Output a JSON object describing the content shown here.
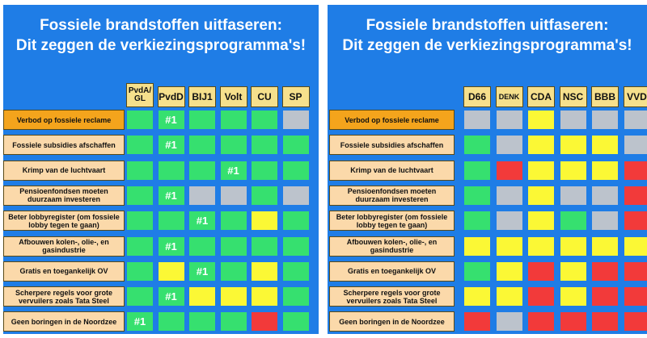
{
  "left": {
    "title_line1": "Fossiele brandstoffen uitfaseren:",
    "title_line2": "Dit zeggen de verkiezingsprogramma's!",
    "parties": [
      "PvdA/\nGL",
      "PvdD",
      "BIJ1",
      "Volt",
      "CU",
      "SP"
    ],
    "rows": [
      {
        "label": "Verbod op fossiele reclame",
        "highlight": true,
        "cells": [
          {
            "c": "green"
          },
          {
            "c": "green",
            "t": "#1"
          },
          {
            "c": "green"
          },
          {
            "c": "green"
          },
          {
            "c": "green"
          },
          {
            "c": "grey"
          }
        ]
      },
      {
        "label": "Fossiele subsidies afschaffen",
        "cells": [
          {
            "c": "green"
          },
          {
            "c": "green",
            "t": "#1"
          },
          {
            "c": "green"
          },
          {
            "c": "green"
          },
          {
            "c": "green"
          },
          {
            "c": "green"
          }
        ]
      },
      {
        "label": "Krimp van de luchtvaart",
        "cells": [
          {
            "c": "green"
          },
          {
            "c": "green"
          },
          {
            "c": "green"
          },
          {
            "c": "green",
            "t": "#1"
          },
          {
            "c": "green"
          },
          {
            "c": "green"
          }
        ]
      },
      {
        "label": "Pensioenfondsen moeten duurzaam investeren",
        "cells": [
          {
            "c": "green"
          },
          {
            "c": "green",
            "t": "#1"
          },
          {
            "c": "grey"
          },
          {
            "c": "grey"
          },
          {
            "c": "green"
          },
          {
            "c": "grey"
          }
        ]
      },
      {
        "label": "Beter lobbyregister (om fossiele lobby tegen te gaan)",
        "cells": [
          {
            "c": "green"
          },
          {
            "c": "green"
          },
          {
            "c": "green",
            "t": "#1"
          },
          {
            "c": "green"
          },
          {
            "c": "yellow"
          },
          {
            "c": "green"
          }
        ]
      },
      {
        "label": "Afbouwen kolen-, olie-, en gasindustrie",
        "cells": [
          {
            "c": "green"
          },
          {
            "c": "green",
            "t": "#1"
          },
          {
            "c": "green"
          },
          {
            "c": "green"
          },
          {
            "c": "green"
          },
          {
            "c": "green"
          }
        ]
      },
      {
        "label": "Gratis en toegankelijk OV",
        "cells": [
          {
            "c": "green"
          },
          {
            "c": "yellow"
          },
          {
            "c": "green",
            "t": "#1"
          },
          {
            "c": "green"
          },
          {
            "c": "yellow"
          },
          {
            "c": "green"
          }
        ]
      },
      {
        "label": "Scherpere regels voor grote vervuilers zoals Tata Steel",
        "cells": [
          {
            "c": "green"
          },
          {
            "c": "green",
            "t": "#1"
          },
          {
            "c": "yellow"
          },
          {
            "c": "yellow"
          },
          {
            "c": "yellow"
          },
          {
            "c": "green"
          }
        ]
      },
      {
        "label": "Geen boringen in de Noordzee",
        "cells": [
          {
            "c": "green",
            "t": "#1"
          },
          {
            "c": "green"
          },
          {
            "c": "green"
          },
          {
            "c": "green"
          },
          {
            "c": "red"
          },
          {
            "c": "green"
          }
        ]
      }
    ]
  },
  "right": {
    "title_line1": "Fossiele brandstoffen uitfaseren:",
    "title_line2": "Dit zeggen de verkiezingsprogramma's!",
    "parties": [
      "D66",
      "DENK",
      "CDA",
      "NSC",
      "BBB",
      "VVD"
    ],
    "rows": [
      {
        "label": "Verbod op fossiele reclame",
        "highlight": true,
        "cells": [
          {
            "c": "grey"
          },
          {
            "c": "grey"
          },
          {
            "c": "yellow"
          },
          {
            "c": "grey"
          },
          {
            "c": "grey"
          },
          {
            "c": "grey"
          }
        ]
      },
      {
        "label": "Fossiele subsidies afschaffen",
        "cells": [
          {
            "c": "green"
          },
          {
            "c": "grey"
          },
          {
            "c": "yellow"
          },
          {
            "c": "yellow"
          },
          {
            "c": "yellow"
          },
          {
            "c": "grey"
          }
        ]
      },
      {
        "label": "Krimp van de luchtvaart",
        "cells": [
          {
            "c": "green"
          },
          {
            "c": "red"
          },
          {
            "c": "yellow"
          },
          {
            "c": "yellow"
          },
          {
            "c": "yellow"
          },
          {
            "c": "red"
          }
        ]
      },
      {
        "label": "Pensioenfondsen moeten duurzaam investeren",
        "cells": [
          {
            "c": "green"
          },
          {
            "c": "grey"
          },
          {
            "c": "yellow"
          },
          {
            "c": "grey"
          },
          {
            "c": "grey"
          },
          {
            "c": "red"
          }
        ]
      },
      {
        "label": "Beter lobbyregister (om fossiele lobby tegen te gaan)",
        "cells": [
          {
            "c": "green"
          },
          {
            "c": "grey"
          },
          {
            "c": "yellow"
          },
          {
            "c": "green"
          },
          {
            "c": "grey"
          },
          {
            "c": "red"
          }
        ]
      },
      {
        "label": "Afbouwen kolen-, olie-, en gasindustrie",
        "cells": [
          {
            "c": "yellow"
          },
          {
            "c": "yellow"
          },
          {
            "c": "yellow"
          },
          {
            "c": "yellow"
          },
          {
            "c": "yellow"
          },
          {
            "c": "yellow"
          }
        ]
      },
      {
        "label": "Gratis en toegankelijk OV",
        "cells": [
          {
            "c": "green"
          },
          {
            "c": "yellow"
          },
          {
            "c": "red"
          },
          {
            "c": "yellow"
          },
          {
            "c": "red"
          },
          {
            "c": "red"
          }
        ]
      },
      {
        "label": "Scherpere regels voor grote vervuilers zoals Tata Steel",
        "cells": [
          {
            "c": "yellow"
          },
          {
            "c": "yellow"
          },
          {
            "c": "red"
          },
          {
            "c": "yellow"
          },
          {
            "c": "red"
          },
          {
            "c": "red"
          }
        ]
      },
      {
        "label": "Geen boringen in de Noordzee",
        "cells": [
          {
            "c": "red"
          },
          {
            "c": "grey"
          },
          {
            "c": "red"
          },
          {
            "c": "red"
          },
          {
            "c": "red"
          },
          {
            "c": "red"
          }
        ]
      }
    ]
  },
  "colors": {
    "background": "#1f7de6",
    "green": "#36e06f",
    "yellow": "#fbf835",
    "grey": "#bcc3cc",
    "red": "#f23a3a",
    "label_bg": "#fbd9aa",
    "label_highlight": "#f4a41c",
    "header_bg": "#f6e08c"
  }
}
